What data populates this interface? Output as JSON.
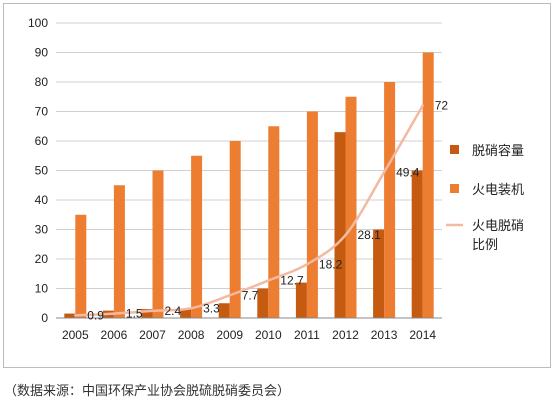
{
  "chart_data": {
    "type": "bar",
    "title": "",
    "xlabel": "",
    "ylabel": "",
    "ylim": [
      0,
      100
    ],
    "yticks": [
      0,
      10,
      20,
      30,
      40,
      50,
      60,
      70,
      80,
      90,
      100
    ],
    "grid": true,
    "legend_position": "right",
    "categories": [
      "2005",
      "2006",
      "2007",
      "2008",
      "2009",
      "2010",
      "2011",
      "2012",
      "2013",
      "2014"
    ],
    "series": [
      {
        "name": "脱硝容量",
        "type": "bar",
        "color": "#c55a11",
        "values": [
          1.5,
          2.5,
          3,
          3,
          5,
          10,
          12,
          63,
          30,
          50
        ]
      },
      {
        "name": "火电装机",
        "type": "bar",
        "color": "#ed7d31",
        "values": [
          35,
          45,
          50,
          55,
          60,
          65,
          70,
          75,
          80,
          90
        ]
      },
      {
        "name": "火电脱硝比例",
        "type": "line",
        "color": "#f4b9a0",
        "values": [
          0.9,
          1.5,
          2.4,
          3.3,
          7.7,
          12.7,
          18.2,
          28.1,
          49.4,
          72
        ],
        "labels": [
          "0.9",
          "1.5",
          "2.4",
          "3.3",
          "7.7",
          "12.7",
          "18.2",
          "28.1",
          "49.4",
          "72"
        ]
      }
    ]
  },
  "source_note": "（数据来源：中国环保产业协会脱硫脱硝委员会）"
}
